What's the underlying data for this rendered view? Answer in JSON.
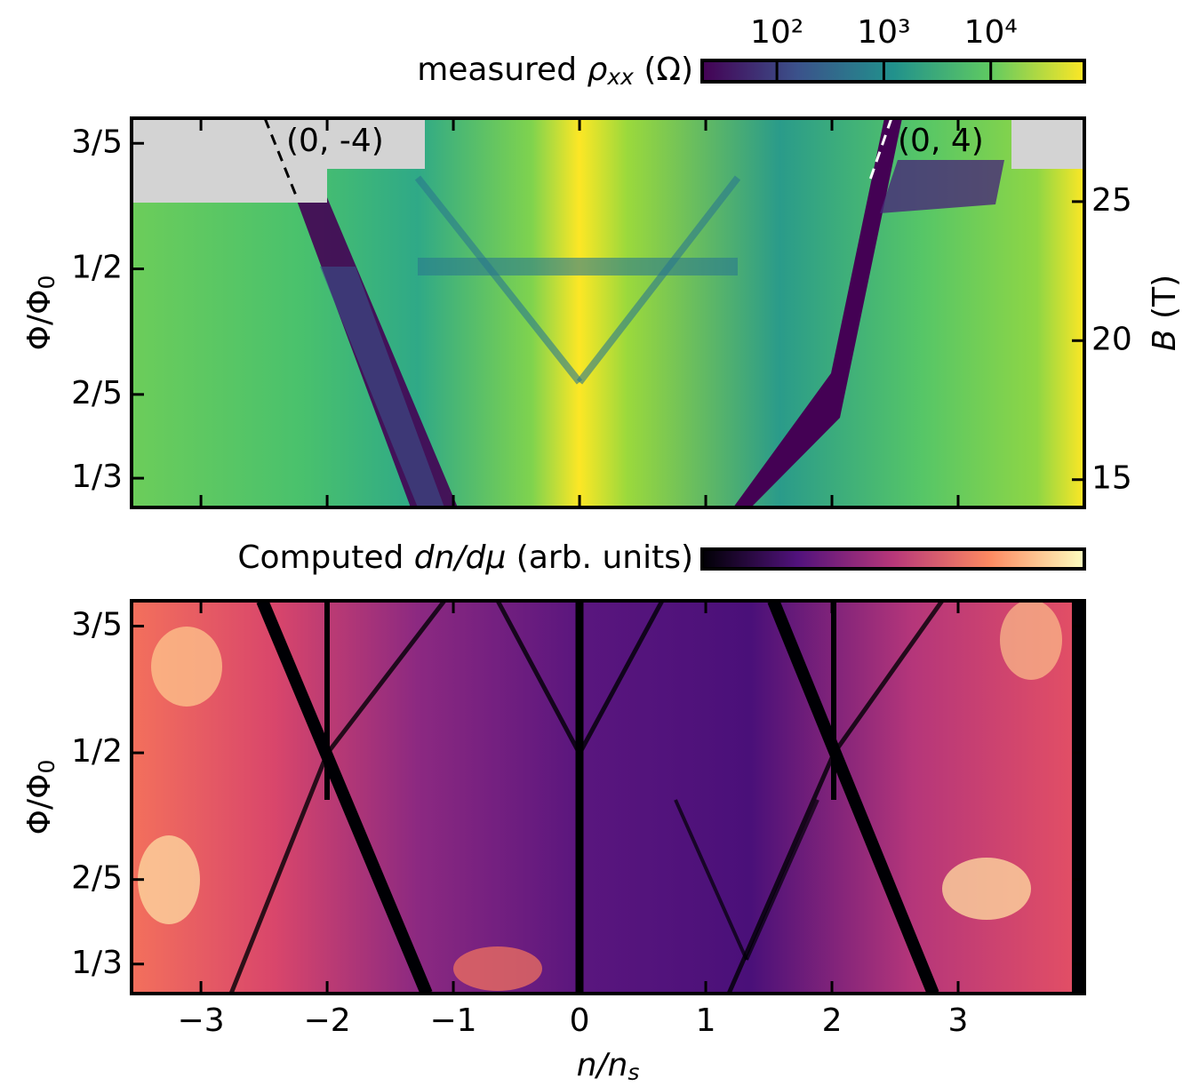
{
  "chart_data": [
    {
      "type": "heatmap",
      "colormap": "viridis",
      "colorbar": {
        "label": [
          "measured ",
          "ρ",
          "xx",
          " (Ω)"
        ],
        "scale": "log",
        "lim": [
          20,
          75000
        ],
        "ticks": [
          {
            "value": 100,
            "label": "10²"
          },
          {
            "value": 1000,
            "label": "10³"
          },
          {
            "value": 10000,
            "label": "10⁴"
          }
        ]
      },
      "ylabel": [
        "Φ/Φ",
        "0"
      ],
      "y2label": [
        "B",
        " (T)"
      ],
      "xlim": [
        -3.55,
        4.0
      ],
      "xticks": [
        -3,
        -2,
        -1,
        0,
        1,
        2,
        3
      ],
      "ylim": [
        0.31,
        0.62
      ],
      "yticks": [
        {
          "value": 0.6,
          "label": "3/5"
        },
        {
          "value": 0.5,
          "label": "1/2"
        },
        {
          "value": 0.4,
          "label": "2/5"
        },
        {
          "value": 0.3333,
          "label": "1/3"
        }
      ],
      "y2lim": [
        14.0,
        28.0
      ],
      "y2ticks": [
        15,
        20,
        25
      ],
      "annotations": [
        "(0, -4)",
        "(0, 4)"
      ]
    },
    {
      "type": "heatmap",
      "colormap": "magma",
      "colorbar": {
        "label": [
          "Computed ",
          "dn/dμ",
          " (arb. units)"
        ]
      },
      "xlabel": [
        "n/n",
        "s"
      ],
      "ylabel": [
        "Φ/Φ",
        "0"
      ],
      "xlim": [
        -3.55,
        4.0
      ],
      "xticks": [
        {
          "value": -3,
          "label": "−3"
        },
        {
          "value": -2,
          "label": "−2"
        },
        {
          "value": -1,
          "label": "−1"
        },
        0,
        1,
        2,
        3
      ],
      "ylim": [
        0.31,
        0.62
      ],
      "yticks": [
        {
          "value": 0.6,
          "label": "3/5"
        },
        {
          "value": 0.5,
          "label": "1/2"
        },
        {
          "value": 0.4,
          "label": "2/5"
        },
        {
          "value": 0.3333,
          "label": "1/3"
        }
      ]
    }
  ]
}
